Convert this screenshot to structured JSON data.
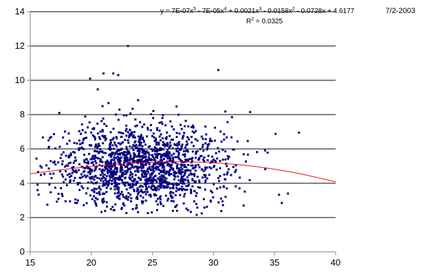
{
  "date_label": "7/2-2003",
  "trendline": {
    "equation_parts": {
      "prefix": "y = 7E-07x",
      "e1": "5",
      "mid1": " - 7E-05x",
      "e2": "4",
      "mid2": " + 0.0021x",
      "e3": "3",
      "mid3": " - 0.0158x",
      "e4": "2",
      "suffix": " - 0.0728x + 4.6177"
    },
    "r2_parts": {
      "prefix": "R",
      "exp": "2",
      "suffix": " = 0.0325"
    }
  },
  "chart_data": {
    "type": "scatter",
    "title": "",
    "xlabel": "",
    "ylabel": "",
    "xlim": [
      15,
      40
    ],
    "ylim": [
      0,
      14
    ],
    "xticks": [
      15,
      20,
      25,
      30,
      35,
      40
    ],
    "yticks": [
      0,
      2,
      4,
      6,
      8,
      10,
      12,
      14
    ],
    "grid": "horizontal",
    "legend": "none",
    "colors": {
      "points": "#000080",
      "trend": "#ff0000",
      "grid": "#000000",
      "axis": "#808080"
    },
    "point_cloud": {
      "count": 1600,
      "x_center": 24.0,
      "x_spread": 3.5,
      "y_center": 5.0,
      "y_spread": 1.2,
      "x_range_observed": [
        15.5,
        37.0
      ],
      "y_range_observed": [
        2.0,
        12.0
      ]
    },
    "notable_points": [
      {
        "x": 23.0,
        "y": 12.0
      },
      {
        "x": 30.4,
        "y": 10.6
      },
      {
        "x": 19.9,
        "y": 10.1
      },
      {
        "x": 21.0,
        "y": 10.4
      },
      {
        "x": 21.8,
        "y": 10.4
      },
      {
        "x": 22.2,
        "y": 10.3
      },
      {
        "x": 37.0,
        "y": 6.95
      },
      {
        "x": 16.5,
        "y": 6.5
      },
      {
        "x": 15.6,
        "y": 3.6
      },
      {
        "x": 16.4,
        "y": 2.75
      },
      {
        "x": 35.6,
        "y": 2.85
      },
      {
        "x": 36.1,
        "y": 3.4
      },
      {
        "x": 33.0,
        "y": 8.15
      }
    ],
    "trendline": {
      "type": "polynomial",
      "order": 5,
      "coefficients_high_to_low": [
        7e-07,
        -7e-05,
        0.0021,
        -0.0158,
        -0.0728,
        4.6177
      ],
      "r_squared": 0.0325
    }
  }
}
